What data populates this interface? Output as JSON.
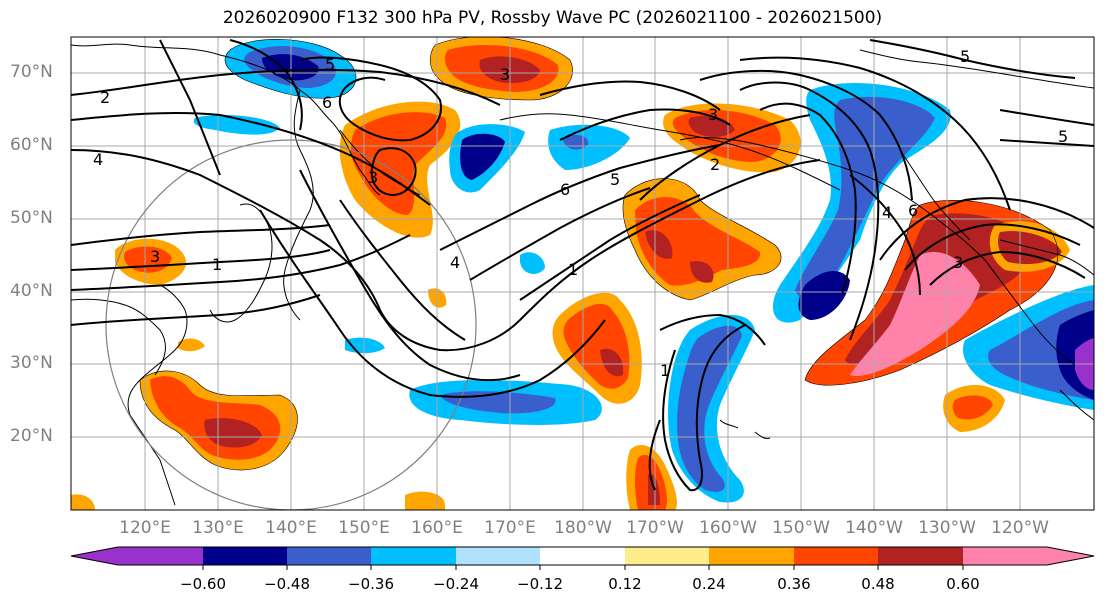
{
  "title": "2026020900 F132 300 hPa PV, Rossby Wave PC (2026021100 - 2026021500)",
  "lat_labels": [
    "70°N",
    "60°N",
    "50°N",
    "40°N",
    "30°N",
    "20°N"
  ],
  "lon_labels": [
    "120°E",
    "130°E",
    "140°E",
    "150°E",
    "160°E",
    "170°E",
    "180°W",
    "170°W",
    "160°W",
    "150°W",
    "140°W",
    "130°W",
    "120°W"
  ],
  "contour_labels": [
    "2",
    "4",
    "5",
    "6",
    "3",
    "1"
  ],
  "colorbar": {
    "ticks": [
      "−0.60",
      "−0.48",
      "−0.36",
      "−0.24",
      "−0.12",
      "0.12",
      "0.24",
      "0.36",
      "0.48",
      "0.60"
    ],
    "colors": [
      "#9932cc",
      "#00008b",
      "#3a5fcd",
      "#00bfff",
      "#b0e2ff",
      "#ffffff",
      "#ffec8b",
      "#ffa500",
      "#ff4500",
      "#b22222",
      "#ff82ab"
    ]
  },
  "colors": {
    "neg_strong": "#00008b",
    "neg_mid": "#3a5fcd",
    "neg_light": "#00bfff",
    "neg_pale": "#b0e2ff",
    "pos_pale": "#ffec8b",
    "pos_light": "#ffa500",
    "pos_mid": "#ff4500",
    "pos_strong": "#b22222",
    "pos_max": "#ff82ab",
    "neg_max": "#9932cc"
  }
}
